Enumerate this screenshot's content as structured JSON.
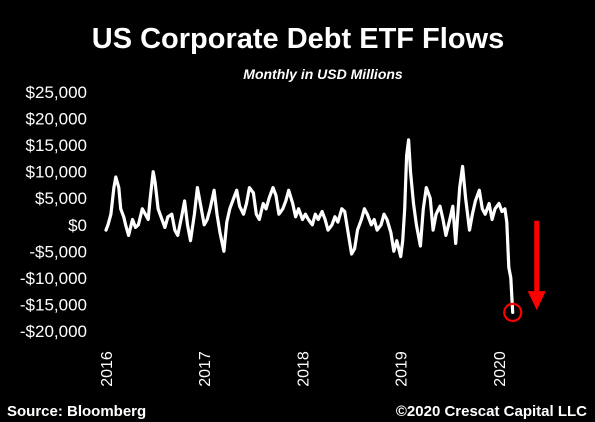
{
  "chart_data": {
    "type": "line",
    "title": "US Corporate Debt ETF Flows",
    "subtitle": "Monthly in USD Millions",
    "source": "Source: Bloomberg",
    "copyright": "©2020 Crescat Capital LLC",
    "xlabel": "",
    "ylabel": "",
    "ylim": [
      -20000,
      25000
    ],
    "xlim": [
      2016,
      2020.55
    ],
    "grid": false,
    "y_tick_values": [
      25000,
      20000,
      15000,
      10000,
      5000,
      0,
      -5000,
      -10000,
      -15000,
      -20000
    ],
    "y_tick_labels": [
      "$25,000",
      "$20,000",
      "$15,000",
      "$10,000",
      "$5,000",
      "$0",
      "-$5,000",
      "-$10,000",
      "-$15,000",
      "-$20,000"
    ],
    "x_tick_values": [
      2016,
      2017,
      2018,
      2019,
      2020
    ],
    "x_tick_labels": [
      "2016",
      "2017",
      "2018",
      "2019",
      "2020"
    ],
    "line_color": "#ffffff",
    "annotation_color": "#ff0000",
    "annotations": [
      "red circle marking the final low point",
      "red downward arrow"
    ],
    "series": [
      {
        "x": [
          2016.0,
          2016.02,
          2016.05,
          2016.08,
          2016.1,
          2016.13,
          2016.15,
          2016.18,
          2016.2,
          2016.23,
          2016.27,
          2016.3,
          2016.33,
          2016.37,
          2016.4,
          2016.43,
          2016.45,
          2016.48,
          2016.5,
          2016.53,
          2016.56,
          2016.6,
          2016.63,
          2016.67,
          2016.7,
          2016.73,
          2016.77,
          2016.8,
          2016.83,
          2016.86,
          2016.9,
          2016.93,
          2016.97,
          2017.0,
          2017.03,
          2017.06,
          2017.1,
          2017.13,
          2017.16,
          2017.2,
          2017.23,
          2017.26,
          2017.3,
          2017.33,
          2017.36,
          2017.4,
          2017.43,
          2017.46,
          2017.5,
          2017.53,
          2017.56,
          2017.6,
          2017.63,
          2017.66,
          2017.7,
          2017.73,
          2017.76,
          2017.8,
          2017.83,
          2017.86,
          2017.9,
          2017.93,
          2017.96,
          2018.0,
          2018.03,
          2018.06,
          2018.1,
          2018.13,
          2018.16,
          2018.2,
          2018.23,
          2018.26,
          2018.3,
          2018.33,
          2018.36,
          2018.4,
          2018.43,
          2018.46,
          2018.5,
          2018.53,
          2018.56,
          2018.6,
          2018.63,
          2018.66,
          2018.7,
          2018.73,
          2018.76,
          2018.8,
          2018.83,
          2018.86,
          2018.9,
          2018.93,
          2018.96,
          2019.0,
          2019.02,
          2019.04,
          2019.06,
          2019.08,
          2019.1,
          2019.13,
          2019.16,
          2019.2,
          2019.23,
          2019.26,
          2019.3,
          2019.33,
          2019.36,
          2019.4,
          2019.43,
          2019.46,
          2019.5,
          2019.53,
          2019.56,
          2019.6,
          2019.63,
          2019.66,
          2019.7,
          2019.73,
          2019.76,
          2019.8,
          2019.83,
          2019.86,
          2019.9,
          2019.93,
          2019.96,
          2020.0,
          2020.03,
          2020.06,
          2020.08,
          2020.1,
          2020.12,
          2020.14
        ],
        "y": [
          -1000,
          0,
          2000,
          7000,
          9000,
          7000,
          3000,
          1500,
          0,
          -2000,
          1000,
          -500,
          0,
          3000,
          2000,
          1000,
          5000,
          10000,
          8000,
          3000,
          1500,
          -500,
          1500,
          2000,
          -1000,
          -2000,
          1500,
          4500,
          0,
          -3000,
          2000,
          7000,
          3000,
          0,
          1000,
          3000,
          6500,
          2000,
          -1500,
          -5000,
          500,
          3000,
          5000,
          6500,
          3500,
          2000,
          4000,
          7000,
          6000,
          2000,
          1000,
          4000,
          3000,
          5000,
          7000,
          5500,
          2000,
          3000,
          4500,
          6500,
          4000,
          1500,
          3000,
          1000,
          2000,
          1000,
          0,
          2000,
          1000,
          2500,
          1000,
          -1000,
          0,
          1500,
          500,
          3000,
          2500,
          -1000,
          -5500,
          -4500,
          -1000,
          1000,
          3000,
          2000,
          0,
          1000,
          -1000,
          0,
          2000,
          1000,
          -1500,
          -5000,
          -3000,
          -6000,
          -3000,
          3000,
          13000,
          16000,
          10000,
          4000,
          0,
          -4000,
          3000,
          7000,
          5000,
          -1000,
          2000,
          3500,
          1000,
          -2000,
          1000,
          3500,
          -3500,
          7000,
          11000,
          5000,
          -1000,
          2000,
          4500,
          6500,
          3000,
          2000,
          4000,
          1000,
          3000,
          4000,
          2500,
          3000,
          500,
          -8000,
          -10000,
          -16500
        ]
      }
    ]
  }
}
